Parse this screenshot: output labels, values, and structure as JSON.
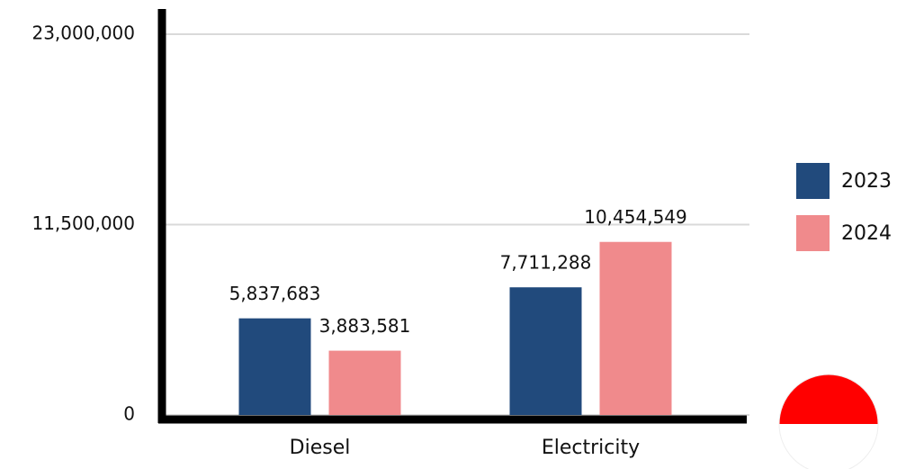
{
  "chart_data": {
    "type": "bar",
    "categories": [
      "Diesel",
      "Electricity"
    ],
    "series": [
      {
        "name": "2023",
        "color": "#214a7c",
        "values": [
          5837683,
          7711288
        ],
        "value_labels": [
          "5,837,683",
          "7,711,288"
        ]
      },
      {
        "name": "2024",
        "color": "#f08a8c",
        "values": [
          3883581,
          10454549
        ],
        "value_labels": [
          "3,883,581",
          "10,454,549"
        ]
      }
    ],
    "ylim": [
      0,
      23000000
    ],
    "yticks": [
      0,
      {
        "value": 11500000,
        "label": "11,500,000"
      },
      {
        "value": 23000000,
        "label": "23,000,000"
      }
    ],
    "grid": true,
    "legend": "right"
  }
}
